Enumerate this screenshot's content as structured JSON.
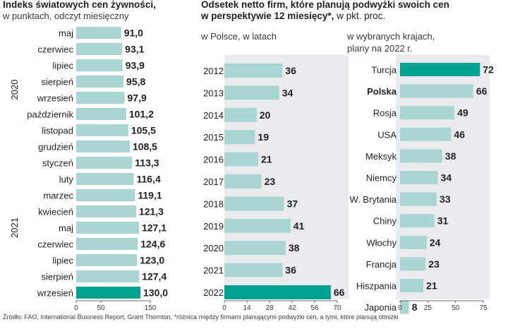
{
  "header": {
    "left_title": "Indeks światowych cen żywności,",
    "left_subtitle": "w punktach, odczyt miesięczny",
    "right_title_line1": "Odsetek netto firm, które planują podwyżki swoich cen",
    "right_title_line2": "w perspektywie 12 miesięcy*,",
    "right_title_unit": " w pkt. proc.",
    "middle_subtitle": "w Polsce, w latach",
    "right_subtitle_line1": "w wybranych krajach,",
    "right_subtitle_line2": "plany na 2022 r."
  },
  "source": "Źródło: FAO, International Business Report, Grant Thornton, *różnica między firmami planującymi podwyżki cen, a tymi, które planują obniżki",
  "chart_data": [
    {
      "type": "bar",
      "orientation": "horizontal",
      "title": "Indeks światowych cen żywności,",
      "subtitle": "w punktach, odczyt miesięczny",
      "categories": [
        "maj",
        "czerwiec",
        "lipiec",
        "sierpień",
        "wrzesień",
        "październik",
        "listopad",
        "grudzień",
        "styczeń",
        "luty",
        "marzec",
        "kwiecień",
        "maj",
        "czerwiec",
        "lipiec",
        "sierpień",
        "wrzesień"
      ],
      "values": [
        91.0,
        93.1,
        93.9,
        95.8,
        97.9,
        101.2,
        105.5,
        108.5,
        113.3,
        116.4,
        119.1,
        121.3,
        127.1,
        124.6,
        123.0,
        127.4,
        130.0
      ],
      "value_labels": [
        "91,0",
        "93,1",
        "93,9",
        "95,8",
        "97,9",
        "101,2",
        "105,5",
        "108,5",
        "113,3",
        "116,4",
        "119,1",
        "121,3",
        "127,1",
        "124,6",
        "123,0",
        "127,4",
        "130,0"
      ],
      "year_groups": [
        {
          "label": "2020",
          "from": 0,
          "to": 7
        },
        {
          "label": "2021",
          "from": 8,
          "to": 16
        }
      ],
      "highlight_index": 16,
      "xlim": [
        0,
        150
      ],
      "xticks": [
        0,
        50,
        150
      ],
      "xtick_labels": [
        "0",
        "50",
        "150"
      ]
    },
    {
      "type": "bar",
      "orientation": "horizontal",
      "subtitle": "w Polsce, w latach",
      "categories": [
        "2012",
        "2013",
        "2014",
        "2015",
        "2016",
        "2017",
        "2018",
        "2019",
        "2020",
        "2021",
        "2022"
      ],
      "values": [
        36,
        34,
        20,
        19,
        21,
        23,
        37,
        41,
        38,
        36,
        66
      ],
      "highlight_index": 10,
      "xlim": [
        0,
        70
      ],
      "xticks": [
        0,
        14,
        28,
        42,
        56,
        70
      ],
      "xtick_labels": [
        "0",
        "14",
        "28",
        "42",
        "56",
        "70"
      ]
    },
    {
      "type": "bar",
      "orientation": "horizontal",
      "subtitle": "w wybranych krajach, plany na 2022 r.",
      "categories": [
        "Turcja",
        "Polska",
        "Rosja",
        "USA",
        "Meksyk",
        "Niemcy",
        "W. Brytania",
        "Chiny",
        "Włochy",
        "Francja",
        "Hiszpania",
        "Japonia"
      ],
      "values": [
        72,
        66,
        49,
        46,
        38,
        34,
        33,
        31,
        24,
        23,
        21,
        8
      ],
      "highlight_index": 0,
      "bold_index": 1,
      "xlim": [
        0,
        75
      ],
      "xticks": [
        0,
        25,
        50,
        75
      ],
      "xtick_labels": [
        "0",
        "25",
        "50",
        "75"
      ]
    }
  ],
  "colors": {
    "bar": "#a9d6d2",
    "highlight": "#00a391",
    "panel_bg": "#ebeaef",
    "text": "#231f20",
    "axis": "#3c3c3c"
  }
}
